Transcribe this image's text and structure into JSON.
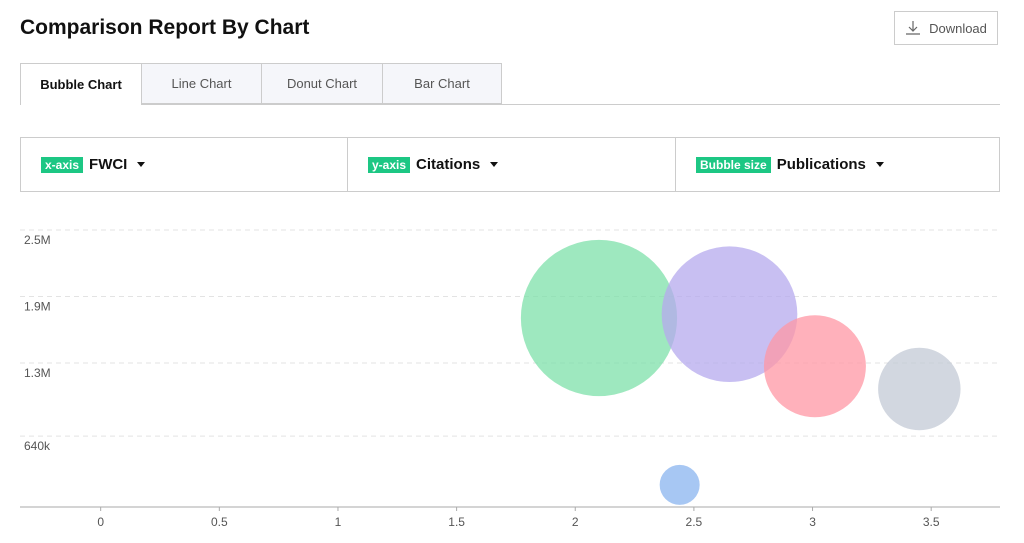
{
  "header": {
    "title": "Comparison Report By Chart",
    "download": "Download"
  },
  "tabs": [
    "Bubble Chart",
    "Line Chart",
    "Donut Chart",
    "Bar Chart"
  ],
  "selectors": [
    {
      "tag": "x-axis",
      "value": "FWCI"
    },
    {
      "tag": "y-axis",
      "value": "Citations"
    },
    {
      "tag": "Bubble size",
      "value": "Publications"
    }
  ],
  "chart_data": {
    "type": "bubble",
    "x": [
      2.1,
      2.65,
      3.01,
      3.45,
      2.44
    ],
    "values": [
      1706000,
      1740000,
      1270000,
      1065000,
      200000
    ],
    "sizes": [
      6100,
      4600,
      2600,
      1700,
      400
    ],
    "colors": [
      "#7ee0aa",
      "#b5a9ee",
      "#ff97a4",
      "#c3c9d6",
      "#8ab4ef"
    ],
    "xlim": [
      -0.34,
      3.79
    ],
    "xticks": [
      0,
      0.5,
      1,
      1.5,
      2,
      2.5,
      3,
      3.5
    ],
    "ylim": [
      0,
      2500000
    ],
    "yticks": [
      {
        "value": 640000,
        "label": "640k"
      },
      {
        "value": 1300000,
        "label": "1.3M"
      },
      {
        "value": 1900000,
        "label": "1.9M"
      },
      {
        "value": 2500000,
        "label": "2.5M"
      }
    ],
    "grid": true
  }
}
